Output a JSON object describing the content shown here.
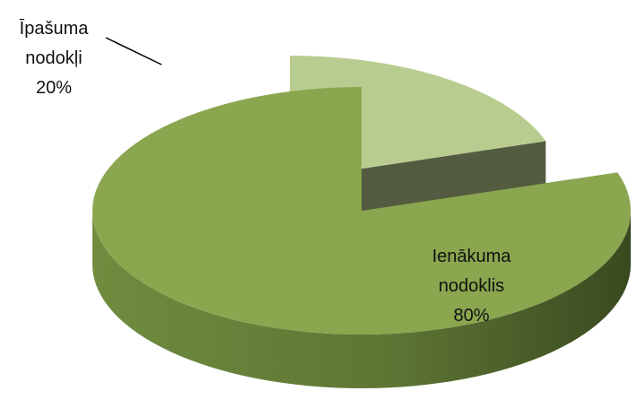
{
  "chart_data": {
    "type": "pie3d",
    "categories": [
      "Īpašuma nodokļi",
      "Ienākuma nodoklis"
    ],
    "values": [
      20,
      80
    ],
    "value_labels": [
      "20%",
      "80%"
    ],
    "colors": [
      "#b9cc8f",
      "#8aa64f"
    ]
  }
}
